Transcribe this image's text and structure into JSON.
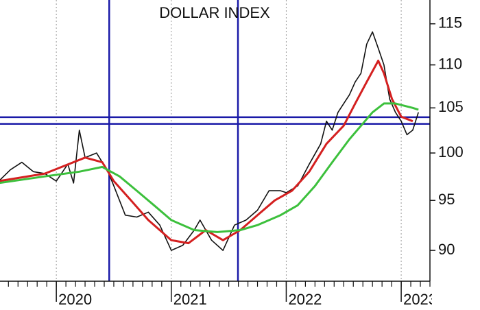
{
  "chart_data": {
    "type": "line",
    "title": "DOLLAR INDEX",
    "log_scale": true,
    "grid": "x",
    "xlim": [
      2019.51,
      2023.25
    ],
    "xticks": [
      2020,
      2021,
      2022,
      2023
    ],
    "ylim": [
      87.05,
      118
    ],
    "yticks": [
      90,
      95,
      100,
      105,
      110,
      115
    ],
    "vlines": {
      "color": "#1a1aa8",
      "x": [
        2020.46,
        2021.58
      ]
    },
    "hlines": {
      "color": "#1a1aa8",
      "y": [
        103.95,
        103.2
      ]
    },
    "series": [
      {
        "color": "#111111",
        "x": [
          2019.5,
          2019.6,
          2019.7,
          2019.8,
          2019.9,
          2020.0,
          2020.1,
          2020.15,
          2020.2,
          2020.25,
          2020.35,
          2020.45,
          2020.5,
          2020.6,
          2020.7,
          2020.8,
          2020.9,
          2021.0,
          2021.1,
          2021.2,
          2021.25,
          2021.35,
          2021.45,
          2021.55,
          2021.65,
          2021.75,
          2021.85,
          2021.95,
          2022.0,
          2022.1,
          2022.2,
          2022.3,
          2022.35,
          2022.4,
          2022.45,
          2022.55,
          2022.6,
          2022.65,
          2022.7,
          2022.75,
          2022.8,
          2022.85,
          2022.9,
          2022.95,
          2023.0,
          2023.05,
          2023.1,
          2023.15
        ],
        "values": [
          97.0,
          98.2,
          99.0,
          98.0,
          97.8,
          97.0,
          98.8,
          96.8,
          102.5,
          99.5,
          100.0,
          98.0,
          96.5,
          93.5,
          93.3,
          93.8,
          92.5,
          90.0,
          90.5,
          92.0,
          93.0,
          91.0,
          90.0,
          92.5,
          93.0,
          94.0,
          96.0,
          96.0,
          95.8,
          96.5,
          98.8,
          101.0,
          103.5,
          102.5,
          104.5,
          106.5,
          108.0,
          109.0,
          112.5,
          114.0,
          112.0,
          110.0,
          106.0,
          104.5,
          103.5,
          102.0,
          102.5,
          104.5
        ]
      },
      {
        "color": "#d42020",
        "x": [
          2019.5,
          2019.9,
          2020.25,
          2020.4,
          2020.5,
          2020.65,
          2020.8,
          2021.0,
          2021.15,
          2021.3,
          2021.45,
          2021.6,
          2021.75,
          2021.9,
          2022.05,
          2022.2,
          2022.35,
          2022.5,
          2022.6,
          2022.7,
          2022.8,
          2022.85,
          2022.92,
          2023.0,
          2023.1
        ],
        "values": [
          97.0,
          97.8,
          99.5,
          99.0,
          97.0,
          95.0,
          93.0,
          91.0,
          90.7,
          92.0,
          91.0,
          92.0,
          93.5,
          95.0,
          96.0,
          98.0,
          101.0,
          103.0,
          105.5,
          108.0,
          110.5,
          109.0,
          106.0,
          104.0,
          103.5
        ]
      },
      {
        "color": "#3cc03c",
        "x": [
          2019.5,
          2019.9,
          2020.2,
          2020.4,
          2020.55,
          2020.7,
          2020.85,
          2021.0,
          2021.2,
          2021.4,
          2021.6,
          2021.75,
          2021.95,
          2022.1,
          2022.25,
          2022.4,
          2022.55,
          2022.75,
          2022.85,
          2022.95,
          2023.1,
          2023.15
        ],
        "values": [
          96.8,
          97.5,
          98.0,
          98.5,
          97.5,
          96.0,
          94.5,
          93.0,
          92.0,
          91.8,
          92.0,
          92.5,
          93.5,
          94.5,
          96.5,
          99.0,
          101.5,
          104.5,
          105.5,
          105.5,
          105.0,
          104.8
        ]
      }
    ]
  }
}
